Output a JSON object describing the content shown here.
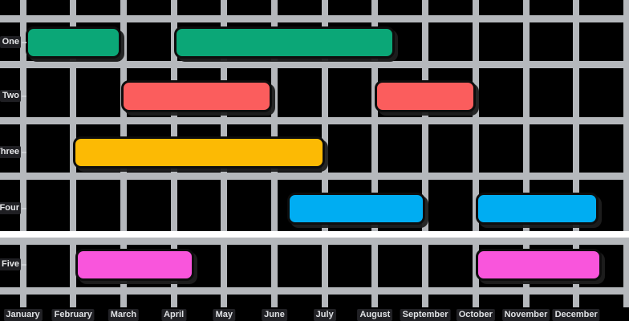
{
  "chart_data": {
    "type": "gantt",
    "title": "",
    "xlabel": "",
    "ylabel": "",
    "background_color": "#000000",
    "gridline_color": "#b5b8bc",
    "special_separator_color": "#ffffff",
    "x_tick_labels": [
      "January",
      "February",
      "March",
      "April",
      "May",
      "June",
      "July",
      "August",
      "September",
      "October",
      "November",
      "December"
    ],
    "x_range_months": [
      0,
      12
    ],
    "y_categories": [
      "One",
      "Two",
      "Three",
      "Four",
      "Five"
    ],
    "legend": null,
    "grid": true,
    "rows": [
      {
        "label": "One",
        "color": "#0BA777",
        "bars": [
          {
            "start_month": 0.05,
            "end_month": 1.95
          },
          {
            "start_month": 3.0,
            "end_month": 7.4
          }
        ]
      },
      {
        "label": "Two",
        "color": "#FB5D5D",
        "bars": [
          {
            "start_month": 1.95,
            "end_month": 4.95
          },
          {
            "start_month": 7.0,
            "end_month": 9.0
          }
        ]
      },
      {
        "label": "Three",
        "color": "#FCBA04",
        "bars": [
          {
            "start_month": 1.0,
            "end_month": 6.0
          }
        ]
      },
      {
        "label": "Four",
        "color": "#00ADF2",
        "bars": [
          {
            "start_month": 5.25,
            "end_month": 8.0
          },
          {
            "start_month": 9.0,
            "end_month": 11.45
          }
        ]
      },
      {
        "label": "Five",
        "color": "#F955DC",
        "bars": [
          {
            "start_month": 1.05,
            "end_month": 3.4
          },
          {
            "start_month": 9.0,
            "end_month": 11.5
          }
        ]
      }
    ]
  }
}
